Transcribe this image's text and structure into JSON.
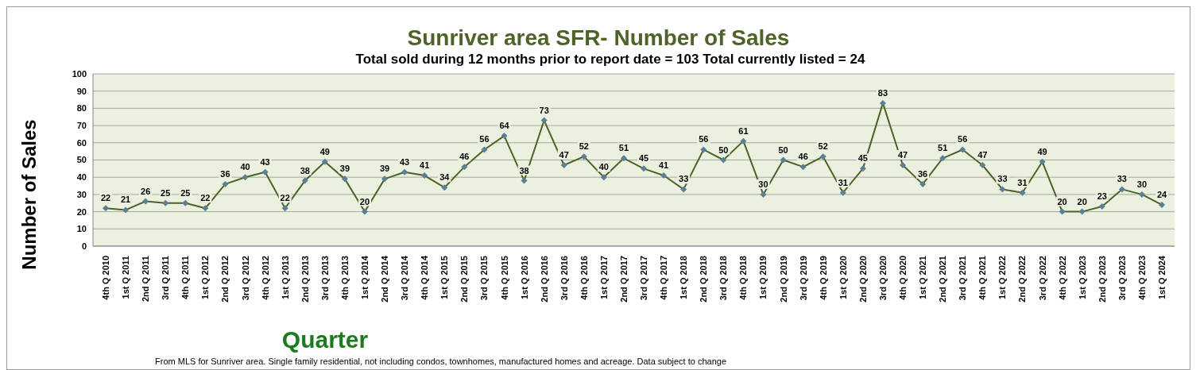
{
  "chart_data": {
    "type": "line",
    "title": "Sunriver area SFR- Number of Sales",
    "subtitle": "Total sold during 12 months prior to report date = 103 Total currently listed = 24",
    "xlabel": "Quarter",
    "ylabel": "Number of Sales",
    "annotations": [
      "From MLS for Sunriver area. Single family residential, not including condos, townhomes, manufactured homes and acreage.  Data subject to change"
    ],
    "categories": [
      "4th Q 2010",
      "1st Q 2011",
      "2nd Q 2011",
      "3rd Q 2011",
      "4th Q 2011",
      "1st Q 2012",
      "2nd Q 2012",
      "3rd Q 2012",
      "4th Q 2012",
      "1st Q 2013",
      "2nd Q 2013",
      "3rd Q 2013",
      "4th Q 2013",
      "1st Q 2014",
      "2nd Q 2014",
      "3rd Q 2014",
      "4th Q 2014",
      "1st Q 2015",
      "2nd Q 2015",
      "3rd Q 2015",
      "4th Q 2015",
      "1st Q 2016",
      "2nd Q 2016",
      "3rd Q 2016",
      "4th Q 2016",
      "1st Q 2017",
      "2nd Q 2017",
      "3rd Q 2017",
      "4th Q 2017",
      "1st Q 2018",
      "2nd Q 2018",
      "3rd Q 2018",
      "4th Q 2018",
      "1st Q 2019",
      "2nd Q 2019",
      "3rd Q 2019",
      "4th Q 2019",
      "1st Q 2020",
      "2nd Q 2020",
      "3rd Q 2020",
      "4th Q 2020",
      "1st Q 2021",
      "2nd Q 2021",
      "3rd Q 2021",
      "4th Q 2021",
      "1st Q 2022",
      "2nd Q 2022",
      "3rd Q 2022",
      "4th Q 2022",
      "1st Q 2023",
      "2nd Q 2023",
      "3rd Q 2023",
      "4th Q 2023",
      "1st Q 2024"
    ],
    "series": [
      {
        "color": "#4f6228",
        "values": [
          22,
          21,
          26,
          25,
          25,
          22,
          36,
          40,
          43,
          22,
          38,
          49,
          39,
          20,
          39,
          43,
          41,
          34,
          46,
          56,
          64,
          38,
          73,
          47,
          52,
          40,
          51,
          45,
          41,
          33,
          56,
          50,
          61,
          30,
          50,
          46,
          52,
          31,
          45,
          83,
          47,
          36,
          51,
          56,
          47,
          33,
          31,
          49,
          20,
          20,
          23,
          33,
          30,
          24
        ]
      }
    ],
    "ylim": [
      0,
      100
    ],
    "yticks": [
      0,
      10,
      20,
      30,
      40,
      50,
      60,
      70,
      80,
      90,
      100
    ],
    "grid": "y",
    "marker": "diamond",
    "data_labels": true
  }
}
